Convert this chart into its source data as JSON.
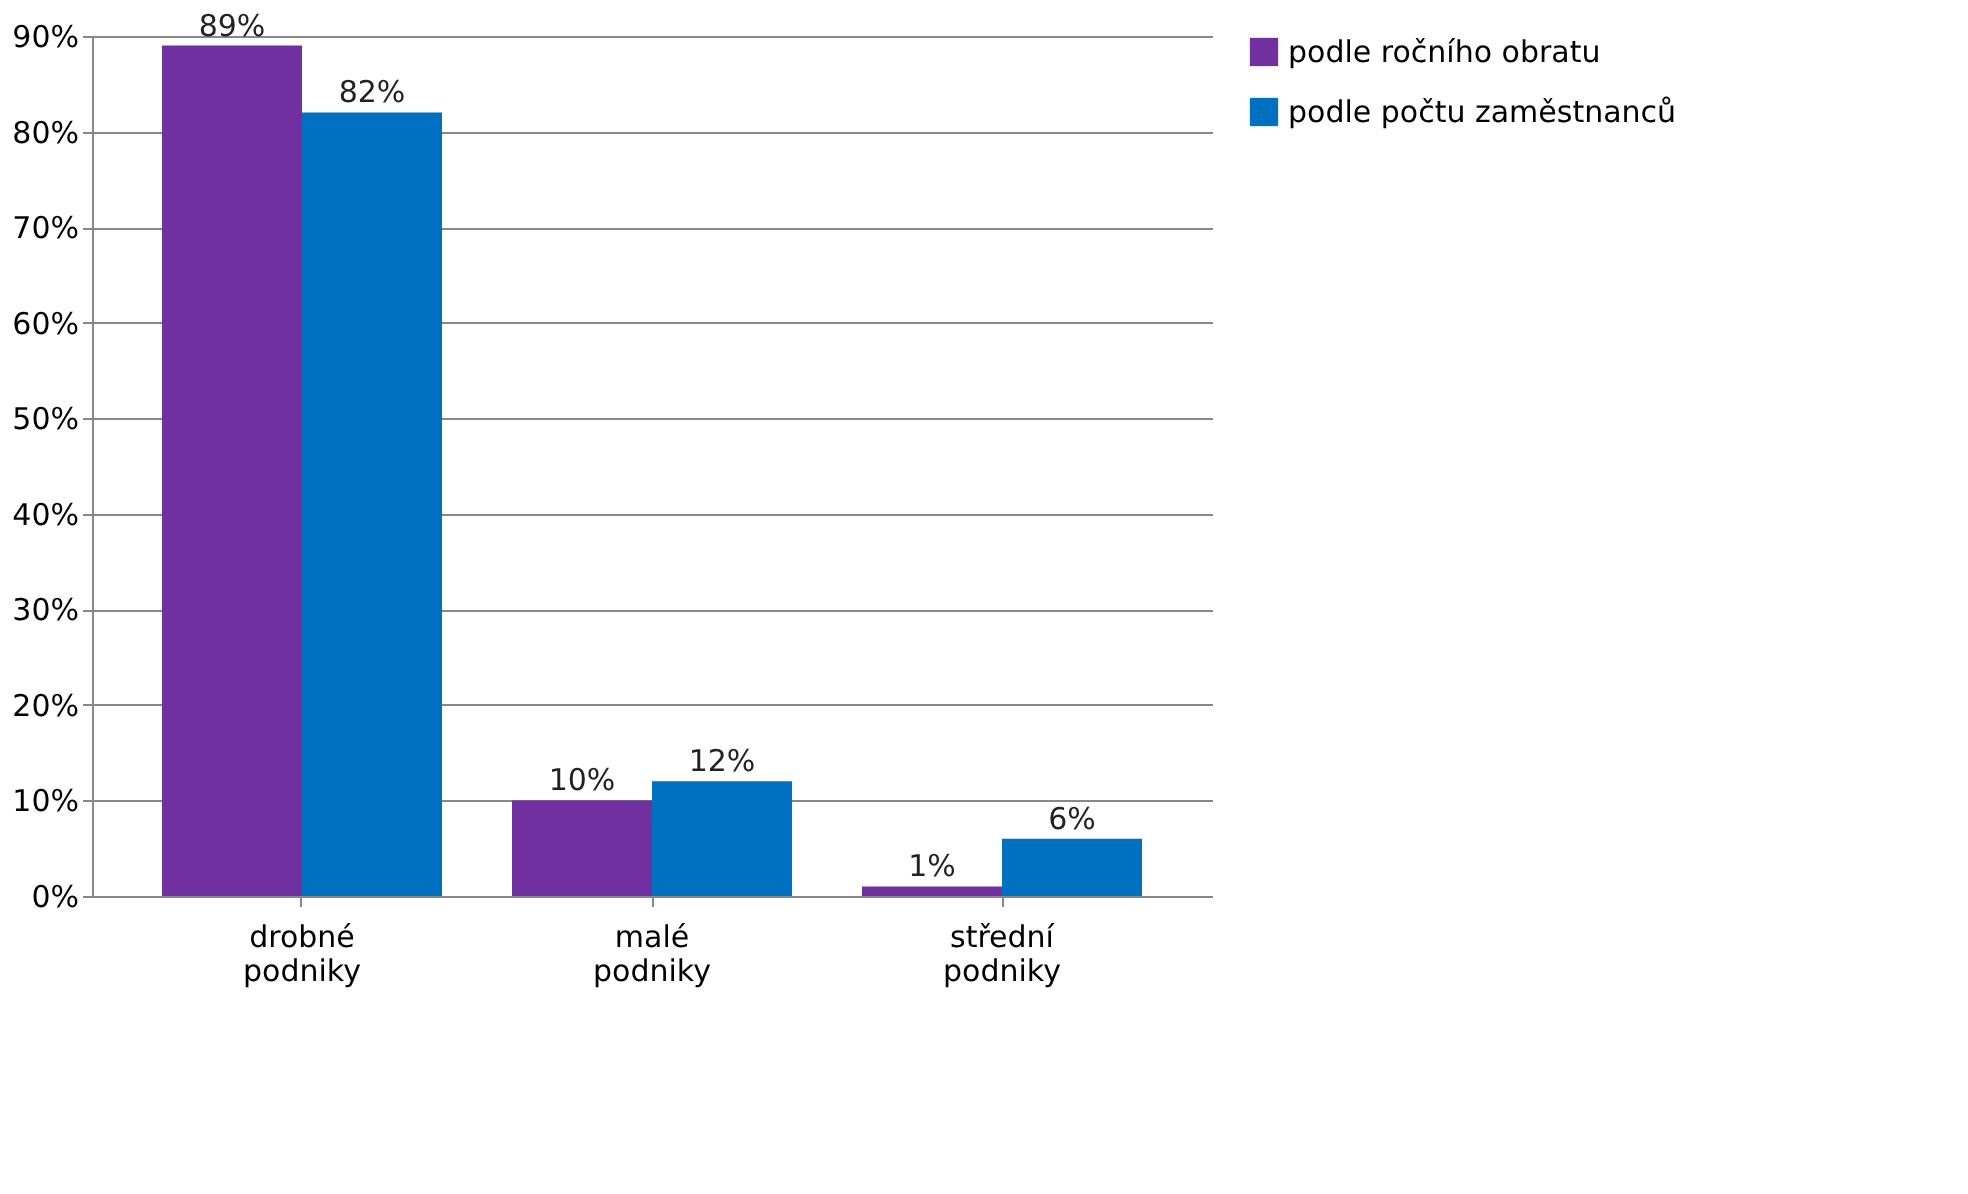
{
  "chart_data": {
    "type": "bar",
    "categories": [
      "drobné podniky",
      "malé podniky",
      "střední podniky"
    ],
    "series": [
      {
        "name": "podle ročního obratu",
        "color": "#7030a0",
        "values": [
          89,
          10,
          1
        ],
        "value_labels": [
          "89%",
          "10%",
          "1%"
        ]
      },
      {
        "name": "podle počtu zaměstnanců",
        "color": "#0070c0",
        "values": [
          82,
          12,
          6
        ],
        "value_labels": [
          "82%",
          "12%",
          "6%"
        ]
      }
    ],
    "ylim": [
      0,
      90
    ],
    "yticks": [
      {
        "value": 0,
        "label": "0%"
      },
      {
        "value": 10,
        "label": "10%"
      },
      {
        "value": 20,
        "label": "20%"
      },
      {
        "value": 30,
        "label": "30%"
      },
      {
        "value": 40,
        "label": "40%"
      },
      {
        "value": 50,
        "label": "50%"
      },
      {
        "value": 60,
        "label": "60%"
      },
      {
        "value": 70,
        "label": "70%"
      },
      {
        "value": 80,
        "label": "80%"
      },
      {
        "value": 90,
        "label": "90%"
      }
    ],
    "grid": "y",
    "legend": "right"
  }
}
